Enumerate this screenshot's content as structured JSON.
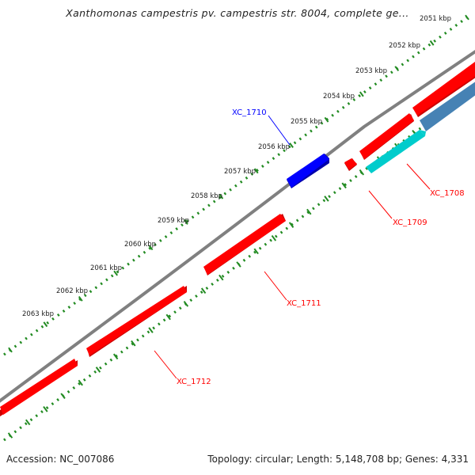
{
  "title": "Xanthomonas campestris pv. campestris str. 8004, complete ge...",
  "footer": {
    "accession": "Accession: NC_007086",
    "stats": "Topology: circular; Length: 5,148,708 bp; Genes: 4,331"
  },
  "colors": {
    "backbone": "#808080",
    "ruler_ticks": "#228B22",
    "gene_forward": "#FF0000",
    "gene_reverse": "#0000FF",
    "cds_feature": "#00CCCC",
    "cds_feature_alt": "#4682B4",
    "label_text": "#222222"
  },
  "ruler": {
    "labels": [
      "2051 kbp",
      "2052 kbp",
      "2053 kbp",
      "2054 kbp",
      "2055 kbp",
      "2056 kbp",
      "2057 kbp",
      "2058 kbp",
      "2059 kbp",
      "2060 kbp",
      "2061 kbp",
      "2062 kbp",
      "2063 kbp"
    ]
  },
  "genes": [
    {
      "name": "XC_1708",
      "color": "#FF0000"
    },
    {
      "name": "XC_1709",
      "color": "#FF0000"
    },
    {
      "name": "XC_1710",
      "color": "#0000FF"
    },
    {
      "name": "XC_1711",
      "color": "#FF0000"
    },
    {
      "name": "XC_1712",
      "color": "#FF0000"
    }
  ]
}
